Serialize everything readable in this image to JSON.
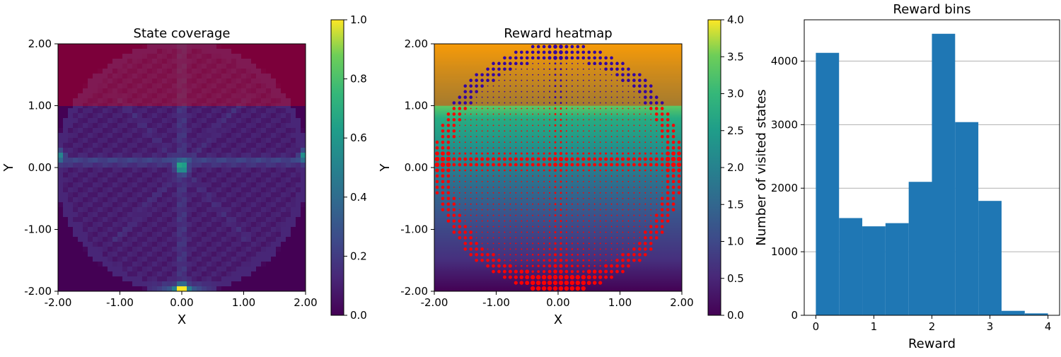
{
  "panels": {
    "coverage": {
      "title": "State coverage",
      "xlabel": "X",
      "ylabel": "Y",
      "tick_labels": [
        "-2.00",
        "-1.00",
        "0.00",
        "1.00",
        "2.00"
      ],
      "colorbar_ticks": [
        "0.0",
        "0.2",
        "0.4",
        "0.6",
        "0.8",
        "1.0"
      ]
    },
    "reward": {
      "title": "Reward heatmap",
      "xlabel": "X",
      "ylabel": "Y",
      "tick_labels": [
        "-2.00",
        "-1.00",
        "0.00",
        "1.00",
        "2.00"
      ],
      "colorbar_ticks": [
        "0.0",
        "0.5",
        "1.0",
        "1.5",
        "2.0",
        "2.5",
        "3.0",
        "3.5",
        "4.0"
      ]
    },
    "hist": {
      "title": "Reward bins",
      "xlabel": "Reward",
      "ylabel": "Number of visited states",
      "xticks": [
        "0",
        "1",
        "2",
        "3",
        "4"
      ],
      "yticks": [
        "0",
        "1000",
        "2000",
        "3000",
        "4000"
      ]
    }
  },
  "colors": {
    "bar": "#1f77b4",
    "dot_low": "#0000cc",
    "dot_high": "#ff0000",
    "grid": "#b0b0b0"
  },
  "chart_data": [
    {
      "type": "heatmap",
      "title": "State coverage",
      "xlabel": "X",
      "ylabel": "Y",
      "xlim": [
        -2,
        2
      ],
      "ylim": [
        -2,
        2
      ],
      "colorbar_range": [
        0,
        1
      ],
      "colormap": "viridis",
      "overlay": "semi-transparent red band for Y from 1 to 2",
      "features": {
        "boundary": "circle of radius 2",
        "horizontal_line_y": 0.1,
        "peak_center": [
          0,
          0,
          0.55
        ],
        "peak_bottom": [
          0,
          -2,
          1.0
        ],
        "peak_left_edge": [
          -2,
          0.2,
          0.45
        ],
        "peak_right_edge": [
          2,
          0.2,
          0.5
        ]
      }
    },
    {
      "type": "heatmap",
      "title": "Reward heatmap",
      "xlabel": "X",
      "ylabel": "Y",
      "xlim": [
        -2,
        2
      ],
      "ylim": [
        -2,
        2
      ],
      "colorbar_range": [
        0,
        4
      ],
      "colormap": "viridis",
      "overlay": "semi-transparent red band for Y from 1 to 2",
      "scatter": "visited states inside circle of radius 2, red for Y below 1, blue for Y above 1"
    },
    {
      "type": "bar",
      "title": "Reward bins",
      "xlabel": "Reward",
      "ylabel": "Number of visited states",
      "bin_edges": [
        0,
        0.4,
        0.8,
        1.2,
        1.6,
        2.0,
        2.4,
        2.8,
        3.2,
        3.6,
        4.0
      ],
      "values": [
        4130,
        1530,
        1400,
        1450,
        2100,
        4430,
        3040,
        1800,
        70,
        30
      ],
      "xlim": [
        -0.2,
        4.2
      ],
      "ylim": [
        0,
        4650
      ],
      "grid": "y"
    }
  ]
}
